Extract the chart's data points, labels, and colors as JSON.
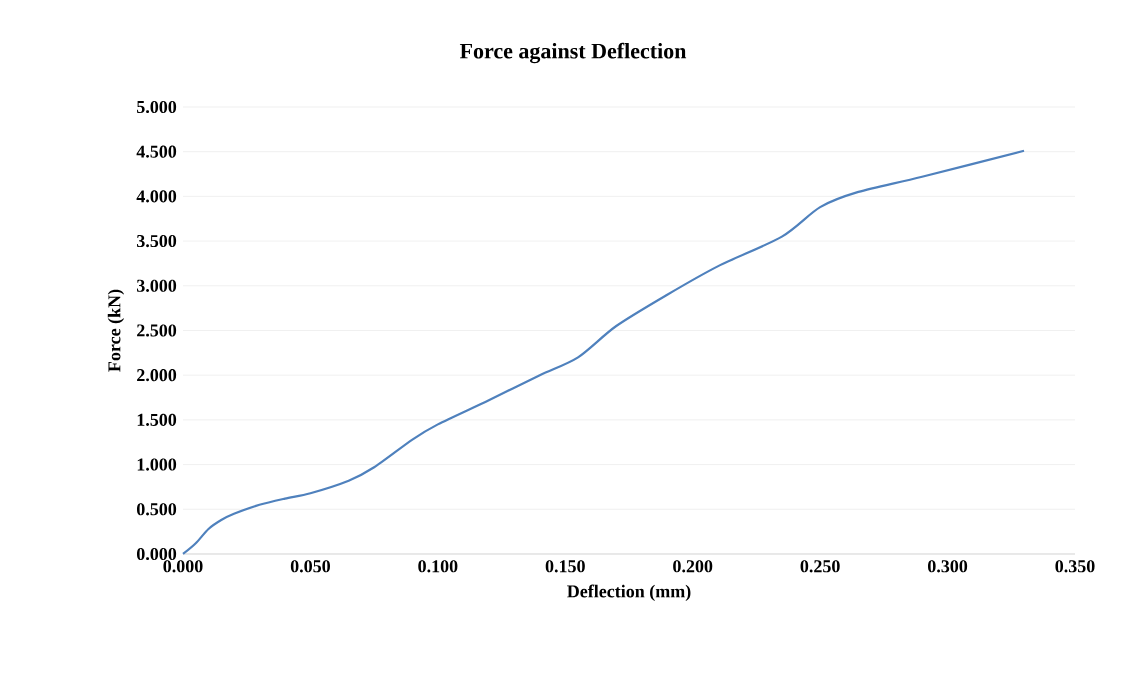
{
  "chart_data": {
    "type": "line",
    "title": "Force against Deflection",
    "xlabel": "Deflection (mm)",
    "ylabel": "Force (kN)",
    "x": [
      0,
      0.005,
      0.01,
      0.015,
      0.02,
      0.03,
      0.04,
      0.05,
      0.065,
      0.075,
      0.09,
      0.1,
      0.12,
      0.14,
      0.155,
      0.17,
      0.19,
      0.21,
      0.235,
      0.25,
      0.265,
      0.29,
      0.33
    ],
    "series": [
      {
        "color": "#4f81bd",
        "values": [
          0,
          0.12,
          0.28,
          0.38,
          0.45,
          0.55,
          0.62,
          0.68,
          0.82,
          0.97,
          1.28,
          1.45,
          1.72,
          2.0,
          2.2,
          2.55,
          2.9,
          3.22,
          3.55,
          3.88,
          4.05,
          4.22,
          4.51
        ]
      }
    ],
    "xlim": [
      0,
      0.35
    ],
    "ylim": [
      0,
      5
    ],
    "xticks": [
      {
        "value": 0,
        "label": "0.000"
      },
      {
        "value": 0.05,
        "label": "0.050"
      },
      {
        "value": 0.1,
        "label": "0.100"
      },
      {
        "value": 0.15,
        "label": "0.150"
      },
      {
        "value": 0.2,
        "label": "0.200"
      },
      {
        "value": 0.25,
        "label": "0.250"
      },
      {
        "value": 0.3,
        "label": "0.300"
      },
      {
        "value": 0.35,
        "label": "0.350"
      }
    ],
    "yticks": [
      {
        "value": 0,
        "label": "0.000"
      },
      {
        "value": 0.5,
        "label": "0.500"
      },
      {
        "value": 1,
        "label": "1.000"
      },
      {
        "value": 1.5,
        "label": "1.500"
      },
      {
        "value": 2,
        "label": "2.000"
      },
      {
        "value": 2.5,
        "label": "2.500"
      },
      {
        "value": 3,
        "label": "3.000"
      },
      {
        "value": 3.5,
        "label": "3.500"
      },
      {
        "value": 4,
        "label": "4.000"
      },
      {
        "value": 4.5,
        "label": "4.500"
      },
      {
        "value": 5,
        "label": "5.000"
      }
    ],
    "grid": "y",
    "marker": "none",
    "line_style": "solid"
  }
}
